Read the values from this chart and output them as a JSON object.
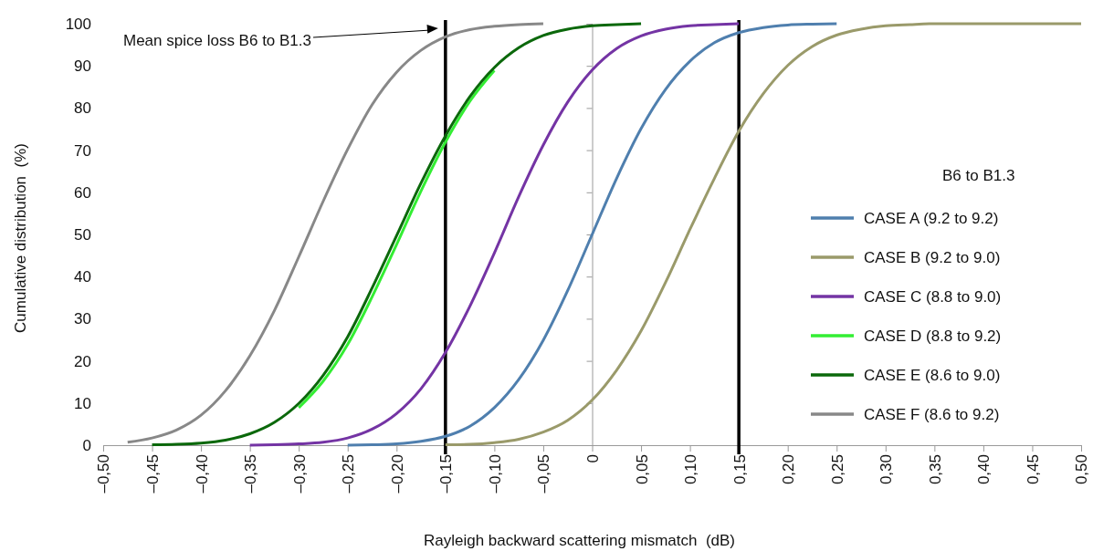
{
  "chart_data": {
    "type": "line",
    "xlabel": "Rayleigh backward scattering mismatch  (dB)",
    "ylabel": "Cumulative distribution  (%)",
    "legend_title": "B6 to B1.3",
    "legend": "right",
    "grid": false,
    "marker": "none",
    "line_style": "solid",
    "xlim": [
      -0.5,
      0.5
    ],
    "xticks": [
      {
        "value": -0.5,
        "label": "–0,50"
      },
      {
        "value": -0.45,
        "label": "–0,45"
      },
      {
        "value": -0.4,
        "label": "–0,40"
      },
      {
        "value": -0.35,
        "label": "–0,35"
      },
      {
        "value": -0.3,
        "label": "–0,30"
      },
      {
        "value": -0.25,
        "label": "–0,25"
      },
      {
        "value": -0.2,
        "label": "–0,20"
      },
      {
        "value": -0.15,
        "label": "–0,15"
      },
      {
        "value": -0.1,
        "label": "–0,10"
      },
      {
        "value": -0.05,
        "label": "–0,05"
      },
      0,
      {
        "value": 0.05,
        "label": "0,05"
      },
      {
        "value": 0.1,
        "label": "0,10"
      },
      {
        "value": 0.15,
        "label": "0,15"
      },
      {
        "value": 0.2,
        "label": "0,20"
      },
      {
        "value": 0.25,
        "label": "0,25"
      },
      {
        "value": 0.3,
        "label": "0,30"
      },
      {
        "value": 0.35,
        "label": "0,35"
      },
      {
        "value": 0.4,
        "label": "0,40"
      },
      {
        "value": 0.45,
        "label": "0,45"
      },
      {
        "value": 0.5,
        "label": "0,50"
      }
    ],
    "ylim": [
      0,
      100
    ],
    "yticks": [
      0,
      10,
      20,
      30,
      40,
      50,
      60,
      70,
      80,
      90,
      100
    ],
    "series": [
      {
        "name": "CASE A (9.2 to 9.2)",
        "color": "#4f7fae",
        "x": [
          -0.25,
          -0.225,
          -0.2,
          -0.175,
          -0.15,
          -0.125,
          -0.1,
          -0.075,
          -0.05,
          -0.025,
          0,
          0.025,
          0.05,
          0.075,
          0.1,
          0.125,
          0.15,
          0.175,
          0.2,
          0.225,
          0.25
        ],
        "values": [
          0,
          0.1,
          0.3,
          0.9,
          2.1,
          4.5,
          8.9,
          15.6,
          24.9,
          36.7,
          50,
          63.3,
          75.1,
          84.4,
          91.1,
          95.5,
          97.9,
          99.1,
          99.7,
          99.9,
          100
        ]
      },
      {
        "name": "CASE B (9.2 to 9.0)",
        "color": "#9a9a6a",
        "x": [
          -0.15,
          -0.125,
          -0.1,
          -0.075,
          -0.05,
          -0.025,
          0,
          0.025,
          0.05,
          0.075,
          0.1,
          0.125,
          0.15,
          0.175,
          0.2,
          0.225,
          0.25,
          0.275,
          0.3,
          0.325,
          0.35,
          0.5
        ],
        "values": [
          0.1,
          0.2,
          0.6,
          1.4,
          3.1,
          5.9,
          10.7,
          17.8,
          27.1,
          38.6,
          51.2,
          63.3,
          74.5,
          83.4,
          90.1,
          94.6,
          97.3,
          98.7,
          99.5,
          99.8,
          100,
          100
        ]
      },
      {
        "name": "CASE C (8.8 to 9.0)",
        "color": "#7434a4",
        "x": [
          -0.35,
          -0.325,
          -0.3,
          -0.275,
          -0.25,
          -0.225,
          -0.2,
          -0.175,
          -0.15,
          -0.125,
          -0.1,
          -0.075,
          -0.05,
          -0.025,
          0,
          0.025,
          0.05,
          0.075,
          0.1,
          0.125,
          0.15
        ],
        "values": [
          0,
          0.1,
          0.3,
          0.7,
          1.7,
          3.8,
          7.5,
          13.4,
          22.0,
          33.0,
          45.6,
          59.0,
          71.2,
          81.4,
          89.0,
          94.1,
          97.1,
          98.7,
          99.5,
          99.8,
          100
        ]
      },
      {
        "name": "CASE D (8.8 to 9.2)",
        "color": "#33ee33",
        "x": [
          -0.3,
          -0.275,
          -0.25,
          -0.225,
          -0.2,
          -0.175,
          -0.15,
          -0.125,
          -0.1
        ],
        "values": [
          8.9,
          15.2,
          23.9,
          35.2,
          47.6,
          60.3,
          71.9,
          81.6,
          88.9
        ]
      },
      {
        "name": "CASE E (8.6 to 9.0)",
        "color": "#0b680b",
        "x": [
          -0.45,
          -0.425,
          -0.4,
          -0.375,
          -0.35,
          -0.325,
          -0.3,
          -0.275,
          -0.25,
          -0.225,
          -0.2,
          -0.175,
          -0.15,
          -0.125,
          -0.1,
          -0.075,
          -0.05,
          -0.025,
          0,
          0.025,
          0.05
        ],
        "values": [
          0.1,
          0.2,
          0.5,
          1.2,
          2.7,
          5.4,
          9.9,
          16.6,
          25.7,
          37.3,
          49.7,
          62.2,
          73.4,
          82.7,
          89.6,
          94.3,
          97.2,
          98.7,
          99.5,
          99.8,
          100
        ]
      },
      {
        "name": "CASE F (8.6 to 9.2)",
        "color": "#888888",
        "x": [
          -0.475,
          -0.45,
          -0.425,
          -0.4,
          -0.375,
          -0.35,
          -0.325,
          -0.3,
          -0.275,
          -0.25,
          -0.225,
          -0.2,
          -0.175,
          -0.15,
          -0.125,
          -0.1,
          -0.075,
          -0.05
        ],
        "values": [
          0.7,
          1.7,
          3.6,
          7.1,
          12.9,
          21.2,
          31.9,
          44.7,
          57.9,
          70.2,
          80.8,
          88.5,
          93.7,
          96.9,
          98.6,
          99.4,
          99.8,
          100
        ]
      }
    ],
    "ref_lines": [
      {
        "axis": "x",
        "value": -0.15,
        "color": "#000000"
      },
      {
        "axis": "x",
        "value": 0.15,
        "color": "#000000"
      }
    ],
    "annotations": [
      "Mean spice loss B6 to B1.3"
    ]
  }
}
